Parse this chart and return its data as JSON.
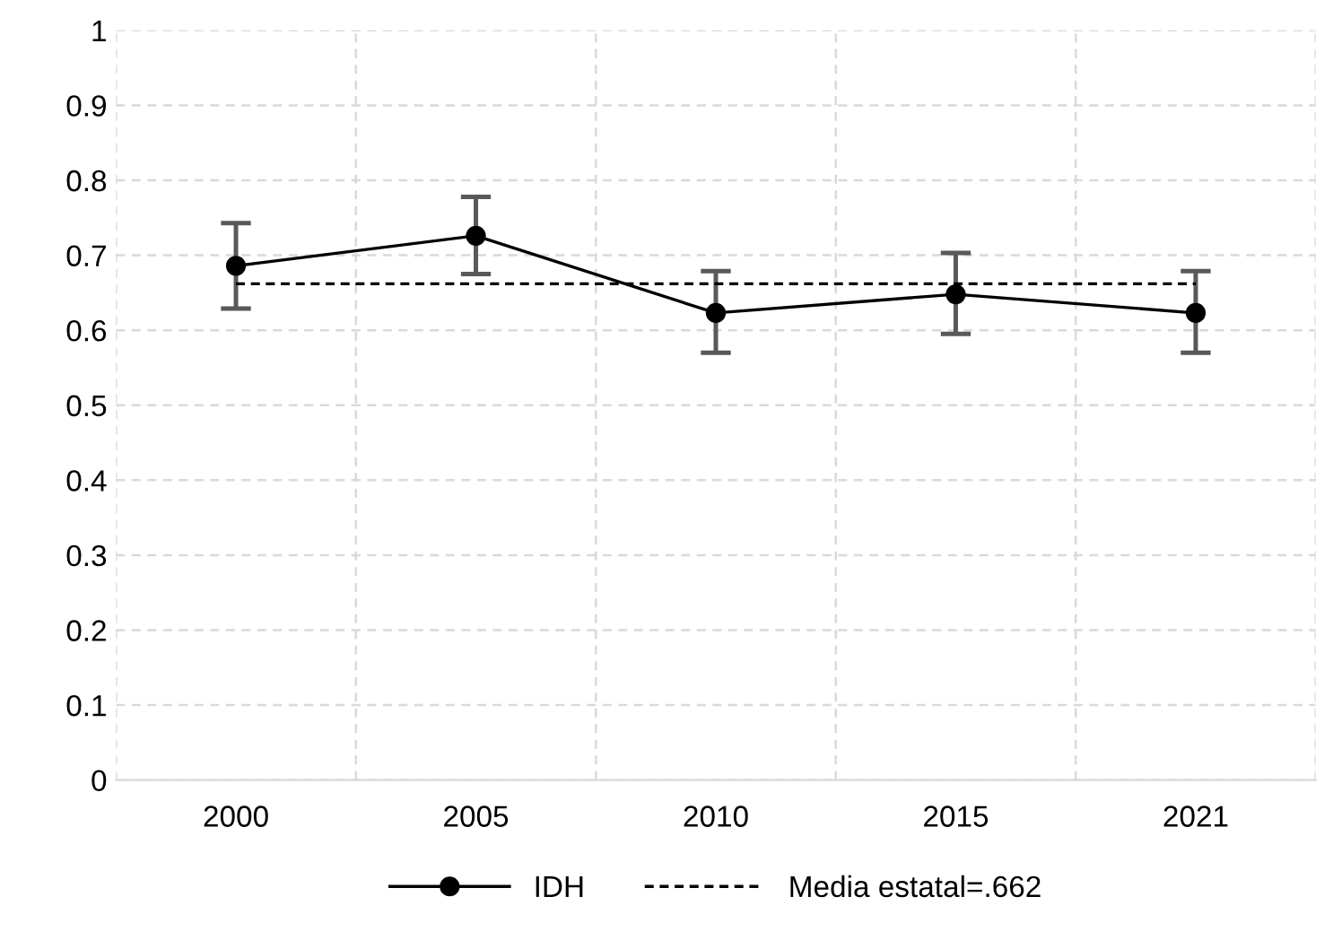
{
  "chart_data": {
    "type": "line",
    "categories": [
      "2000",
      "2005",
      "2010",
      "2015",
      "2021"
    ],
    "series": [
      {
        "name": "IDH",
        "color": "#000000",
        "values": [
          0.686,
          0.726,
          0.623,
          0.648,
          0.623
        ],
        "marker": "circle",
        "line_style": "solid",
        "errors": [
          [
            0.629,
            0.743
          ],
          [
            0.675,
            0.778
          ],
          [
            0.57,
            0.679
          ],
          [
            0.595,
            0.703
          ],
          [
            0.57,
            0.679
          ]
        ]
      },
      {
        "name": "Media estatal=.662",
        "color": "#000000",
        "values": [
          0.662,
          0.662,
          0.662,
          0.662,
          0.662
        ],
        "marker": "none",
        "line_style": "dashed"
      }
    ],
    "ylim": [
      0,
      1
    ],
    "yticks": [
      0,
      0.1,
      0.2,
      0.3,
      0.4,
      0.5,
      0.6,
      0.7,
      0.8,
      0.9,
      1
    ],
    "grid": true,
    "legend": "bottom"
  }
}
